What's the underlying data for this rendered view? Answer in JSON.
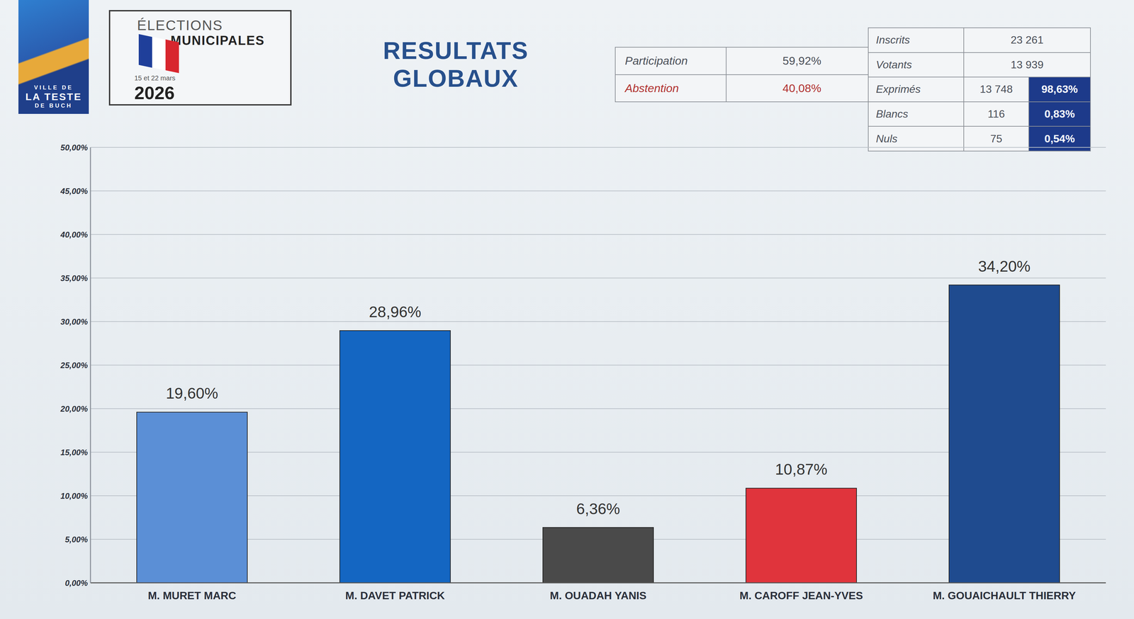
{
  "header": {
    "logo": [
      "VILLE DE",
      "LA TESTE",
      "DE BUCH"
    ],
    "election_line1": "ÉLECTIONS",
    "election_line2": "MUNICIPALES",
    "dates": "15 et 22 mars",
    "year": "2026"
  },
  "participation_table": {
    "rows": [
      [
        "Participation",
        "59,92%"
      ],
      [
        "Abstention",
        "40,08%"
      ]
    ]
  },
  "stats_table": {
    "rows": [
      [
        "Inscrits",
        "23 261"
      ],
      [
        "Votants",
        "13 939"
      ],
      [
        "Exprimés",
        "13 748",
        "98,63%"
      ],
      [
        "Blancs",
        "116",
        "0,83%"
      ],
      [
        "Nuls",
        "75",
        "0,54%"
      ]
    ]
  },
  "chart_data": {
    "type": "bar",
    "title": "RESULTATS GLOBAUX",
    "categories": [
      "M. MURET MARC",
      "M. DAVET PATRICK",
      "M. OUADAH YANIS",
      "M. CAROFF JEAN-YVES",
      "M. GOUAICHAULT THIERRY"
    ],
    "values": [
      19.6,
      28.96,
      6.36,
      10.87,
      34.2
    ],
    "value_labels": [
      "19,60%",
      "28,96%",
      "6,36%",
      "10,87%",
      "34,20%"
    ],
    "colors": [
      "#5b8fd6",
      "#1466c2",
      "#4a4a4a",
      "#e0343c",
      "#1f4b8f"
    ],
    "ylim": [
      0,
      50
    ],
    "yticks": [
      {
        "value": 0,
        "label": "0,00%"
      },
      {
        "value": 5,
        "label": "5,00%"
      },
      {
        "value": 10,
        "label": "10,00%"
      },
      {
        "value": 15,
        "label": "15,00%"
      },
      {
        "value": 20,
        "label": "20,00%"
      },
      {
        "value": 25,
        "label": "25,00%"
      },
      {
        "value": 30,
        "label": "30,00%"
      },
      {
        "value": 35,
        "label": "35,00%"
      },
      {
        "value": 40,
        "label": "40,00%"
      },
      {
        "value": 45,
        "label": "45,00%"
      },
      {
        "value": 50,
        "label": "50,00%"
      }
    ],
    "grid": true,
    "data_labels": true
  }
}
